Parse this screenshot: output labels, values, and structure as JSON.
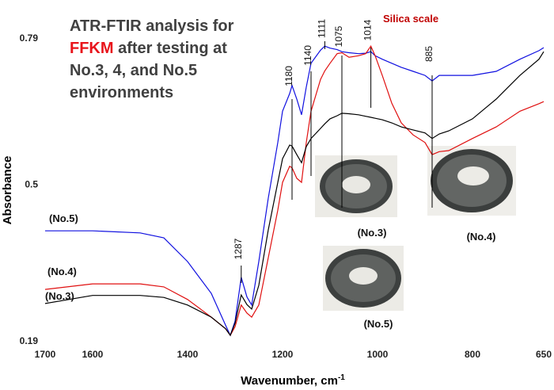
{
  "chart_data": {
    "type": "line",
    "title": [
      [
        {
          "text": "ATR-FTIR analysis for"
        }
      ],
      [
        {
          "text": "FFKM",
          "color": "#e8141b"
        },
        {
          "text": " after testing at"
        }
      ],
      [
        {
          "text": "No.3, 4, and No.5"
        }
      ],
      [
        {
          "text": "environments"
        }
      ]
    ],
    "xlabel": "Wavenumber, cm",
    "xlabel_sup": "-1",
    "ylabel": "Absorbance",
    "x": [
      1700,
      1600,
      1500,
      1450,
      1400,
      1350,
      1320,
      1310,
      1300,
      1287,
      1275,
      1265,
      1250,
      1230,
      1210,
      1200,
      1185,
      1180,
      1170,
      1160,
      1150,
      1140,
      1120,
      1111,
      1100,
      1085,
      1075,
      1060,
      1040,
      1025,
      1014,
      1005,
      990,
      970,
      950,
      925,
      900,
      885,
      870,
      850,
      800,
      750,
      700,
      660,
      650
    ],
    "series": [
      {
        "name": "(No.5)",
        "color": "#1010e0",
        "values": [
          0.408,
          0.408,
          0.404,
          0.394,
          0.347,
          0.284,
          0.221,
          0.201,
          0.229,
          0.316,
          0.277,
          0.261,
          0.347,
          0.473,
          0.583,
          0.645,
          0.68,
          0.696,
          0.669,
          0.638,
          0.693,
          0.74,
          0.766,
          0.774,
          0.77,
          0.767,
          0.763,
          0.761,
          0.759,
          0.76,
          0.763,
          0.755,
          0.748,
          0.74,
          0.732,
          0.724,
          0.716,
          0.705,
          0.716,
          0.716,
          0.716,
          0.724,
          0.748,
          0.765,
          0.771
        ]
      },
      {
        "name": "(No.4)",
        "color": "#e01010",
        "values": [
          0.292,
          0.303,
          0.303,
          0.297,
          0.272,
          0.237,
          0.214,
          0.201,
          0.218,
          0.261,
          0.245,
          0.237,
          0.261,
          0.355,
          0.449,
          0.504,
          0.536,
          0.533,
          0.512,
          0.504,
          0.583,
          0.645,
          0.708,
          0.725,
          0.74,
          0.759,
          0.761,
          0.752,
          0.755,
          0.759,
          0.774,
          0.755,
          0.716,
          0.661,
          0.622,
          0.598,
          0.583,
          0.559,
          0.565,
          0.567,
          0.591,
          0.614,
          0.645,
          0.66,
          0.664
        ]
      },
      {
        "name": "(No.3)",
        "color": "#000000",
        "values": [
          0.264,
          0.28,
          0.28,
          0.276,
          0.261,
          0.237,
          0.214,
          0.201,
          0.225,
          0.281,
          0.262,
          0.253,
          0.3,
          0.41,
          0.504,
          0.551,
          0.578,
          0.576,
          0.559,
          0.543,
          0.575,
          0.591,
          0.611,
          0.62,
          0.63,
          0.636,
          0.641,
          0.64,
          0.638,
          0.635,
          0.633,
          0.631,
          0.628,
          0.622,
          0.614,
          0.608,
          0.602,
          0.591,
          0.6,
          0.606,
          0.63,
          0.669,
          0.716,
          0.748,
          0.763
        ]
      }
    ],
    "xlim": [
      1700,
      650
    ],
    "xticks": [
      1700,
      1600,
      1400,
      1200,
      1000,
      800,
      650
    ],
    "ylim": [
      0.19,
      0.79
    ],
    "yticks": [
      0.19,
      0.5,
      0.79
    ],
    "grid": false,
    "annotations": [
      {
        "x": 1287,
        "label": "1287"
      },
      {
        "x": 1180,
        "label": "1180"
      },
      {
        "x": 1140,
        "label": "1140"
      },
      {
        "x": 1111,
        "label": "1111"
      },
      {
        "x": 1075,
        "label": "1075"
      },
      {
        "x": 1014,
        "label": "1014"
      },
      {
        "x": 885,
        "label": "885"
      }
    ],
    "note": {
      "text": "Silica scale",
      "color": "#c00000"
    },
    "photo_labels": [
      "(No.3)",
      "(No.4)",
      "(No.5)"
    ]
  }
}
